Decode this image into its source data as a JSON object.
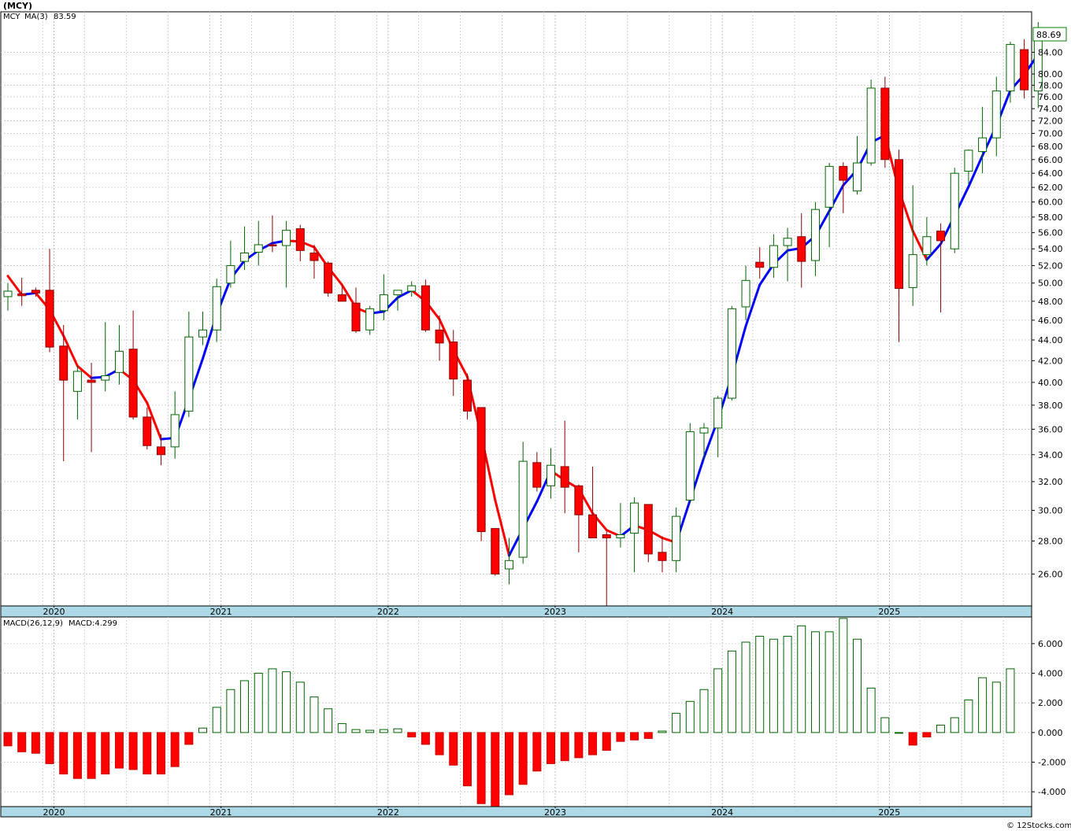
{
  "header": {
    "symbol": "(MCY)"
  },
  "legends": {
    "price": [
      {
        "text": "MCY",
        "color": "#008000"
      },
      {
        "text": "MA(3)",
        "color": "#0000ff"
      },
      {
        "text": "83.59",
        "color": "#0000ff"
      }
    ],
    "macd": [
      {
        "text": "MACD(26,12,9)",
        "color": "#000000"
      },
      {
        "text": "MACD:4.299",
        "color": "#0000ff"
      }
    ]
  },
  "last_price": "88.69",
  "years": [
    "2020",
    "2021",
    "2022",
    "2023",
    "2024",
    "2025"
  ],
  "footer": "© 12Stocks.com",
  "colors": {
    "up_fill": "#ffffff",
    "up_edge": "#006400",
    "down_fill": "#ff0000",
    "down_edge": "#8b0000",
    "ma_up": "#0000ff",
    "ma_down": "#ff0000",
    "axis_band": "#add8e6",
    "grid": "#c8c8c8"
  },
  "chart_data": [
    {
      "type": "candlestick",
      "scale": "log",
      "ylim": [
        24.2,
        92
      ],
      "x_unit": "month index starting Nov 2019",
      "y_ticks": [
        26,
        28,
        30,
        32,
        34,
        36,
        38,
        40,
        42,
        44,
        46,
        48,
        50,
        52,
        54,
        56,
        58,
        60,
        62,
        64,
        66,
        68,
        70,
        72,
        74,
        76,
        78,
        80,
        84
      ],
      "y_tick_labels": [
        "26.00",
        "28.00",
        "30.00",
        "32.00",
        "34.00",
        "36.00",
        "38.00",
        "40.00",
        "42.00",
        "44.00",
        "46.00",
        "48.00",
        "50.00",
        "52.00",
        "54.00",
        "56.00",
        "58.00",
        "60.00",
        "62.00",
        "64.00",
        "66.00",
        "68.00",
        "70.00",
        "72.00",
        "74.00",
        "76.00",
        "78.00",
        "80.00",
        "84.00"
      ],
      "candles": [
        [
          48.5,
          50,
          47,
          49.1
        ],
        [
          48.8,
          50.6,
          47.5,
          48.6
        ],
        [
          49.2,
          49.5,
          48.5,
          48.9
        ],
        [
          49.2,
          54,
          42.8,
          43.3
        ],
        [
          43.4,
          45.5,
          33.5,
          40.2
        ],
        [
          39.2,
          41.5,
          36.8,
          41
        ],
        [
          40.2,
          41.8,
          34.2,
          40
        ],
        [
          40.2,
          45.8,
          39.2,
          40.6
        ],
        [
          40.9,
          45.5,
          39.8,
          42.9
        ],
        [
          43.1,
          47,
          36.8,
          37
        ],
        [
          37,
          37.8,
          34.4,
          34.7
        ],
        [
          34.6,
          35.6,
          33.2,
          34
        ],
        [
          34.6,
          39.2,
          33.7,
          37.2
        ],
        [
          37.5,
          46.9,
          37,
          44.3
        ],
        [
          44.3,
          46.9,
          43.5,
          45
        ],
        [
          45,
          50.5,
          43.8,
          49.6
        ],
        [
          50,
          55,
          49.5,
          52
        ],
        [
          52.5,
          56.8,
          51.5,
          53.5
        ],
        [
          53.6,
          57.5,
          52,
          54.5
        ],
        [
          54.5,
          58.2,
          53.6,
          54.4
        ],
        [
          54.4,
          57.5,
          49.5,
          56.3
        ],
        [
          56.5,
          57,
          52.5,
          53.8
        ],
        [
          53.5,
          54.5,
          50.5,
          52.6
        ],
        [
          52.3,
          52.5,
          48.5,
          48.9
        ],
        [
          48.7,
          49.8,
          48,
          48
        ],
        [
          47.8,
          49.5,
          44.7,
          44.9
        ],
        [
          45,
          47.5,
          44.5,
          47.2
        ],
        [
          47,
          51,
          46,
          48.7
        ],
        [
          48.7,
          49,
          47,
          49.2
        ],
        [
          49.1,
          50.2,
          48.5,
          49.7
        ],
        [
          49.7,
          50.4,
          44.8,
          45
        ],
        [
          45,
          46.5,
          42,
          43.7
        ],
        [
          43.8,
          45,
          38.8,
          40.3
        ],
        [
          40.2,
          40.8,
          36.8,
          37.5
        ],
        [
          37.8,
          37.8,
          28,
          28.6
        ],
        [
          28.8,
          28.8,
          25.9,
          26
        ],
        [
          26.3,
          28.2,
          25.4,
          26.8
        ],
        [
          27,
          35,
          26.6,
          33.5
        ],
        [
          33.4,
          34.2,
          31.3,
          31.6
        ],
        [
          31.7,
          34.5,
          30.8,
          33.2
        ],
        [
          33.1,
          36.7,
          29.8,
          31.6
        ],
        [
          31.7,
          31.8,
          27.3,
          29.7
        ],
        [
          29.7,
          33.1,
          28.2,
          28.2
        ],
        [
          28.4,
          28.6,
          24.2,
          28.2
        ],
        [
          28.2,
          30.5,
          27.6,
          28.4
        ],
        [
          28.5,
          30.9,
          26.1,
          30.5
        ],
        [
          30.4,
          30.4,
          26.7,
          27.2
        ],
        [
          27.3,
          28.3,
          26.1,
          26.8
        ],
        [
          26.8,
          30.2,
          26.1,
          29.6
        ],
        [
          30.7,
          36.5,
          30.5,
          35.8
        ],
        [
          35.7,
          36.5,
          33.6,
          36.1
        ],
        [
          36.1,
          38.8,
          33.8,
          38.6
        ],
        [
          38.6,
          47.5,
          38.4,
          47.2
        ],
        [
          47.4,
          52,
          46,
          50.3
        ],
        [
          52.4,
          54.2,
          50.5,
          51.8
        ],
        [
          51.8,
          55.8,
          50.6,
          54.4
        ],
        [
          54.4,
          56.6,
          50.2,
          55.3
        ],
        [
          55.5,
          58.5,
          49.5,
          52.5
        ],
        [
          52.6,
          60,
          50.8,
          59
        ],
        [
          59.3,
          65.5,
          54.2,
          65
        ],
        [
          65,
          65.6,
          58.5,
          63
        ],
        [
          61.5,
          69.6,
          61,
          65.5
        ],
        [
          65.5,
          79,
          65.1,
          77.5
        ],
        [
          77.5,
          79.5,
          64.8,
          66
        ],
        [
          66,
          67.5,
          43.8,
          49.4
        ],
        [
          49.5,
          62.3,
          47.5,
          53.3
        ],
        [
          53.3,
          58,
          52,
          55.5
        ],
        [
          56.2,
          57.2,
          46.8,
          55
        ],
        [
          54,
          64.8,
          53.5,
          64
        ],
        [
          64.3,
          67.5,
          62.5,
          67.4
        ],
        [
          67.2,
          74.3,
          64,
          69.3
        ],
        [
          69.3,
          79.5,
          66.5,
          77
        ],
        [
          77,
          86,
          75,
          85.5
        ],
        [
          84.5,
          86.5,
          75.7,
          77.2
        ],
        [
          77,
          89.9,
          74.1,
          88.7
        ]
      ]
    },
    {
      "type": "line",
      "name": "MA(3)",
      "x_start_index": 0,
      "values": [
        50.8,
        48.7,
        48.9,
        47.1,
        44.4,
        41.5,
        40.4,
        40.5,
        41.2,
        40.2,
        38.2,
        35.2,
        35.3,
        38.5,
        42.2,
        46.6,
        50.5,
        52.6,
        53.8,
        54.7,
        55.0,
        54.9,
        54.2,
        51.8,
        49.8,
        47.3,
        46.7,
        46.9,
        48.4,
        49.2,
        48.0,
        46.1,
        43.0,
        40.5,
        35.5,
        30.7,
        27.1,
        28.8,
        30.6,
        32.8,
        32.1,
        31.5,
        29.8,
        28.7,
        28.3,
        29.0,
        28.7,
        28.2,
        27.9,
        30.7,
        33.8,
        36.8,
        40.6,
        45.4,
        49.8,
        52.2,
        53.8,
        54.1,
        55.6,
        58.8,
        62.3,
        64.5,
        68.6,
        69.7,
        61.6,
        56.2,
        52.7,
        54.6,
        58.2,
        62.1,
        66.6,
        71.2,
        77.1,
        79.9,
        83.6
      ]
    },
    {
      "type": "bar",
      "name": "MACD(26,12,9)",
      "ylim": [
        -5.0,
        7.8
      ],
      "y_ticks": [
        -4,
        -2,
        0,
        2,
        4,
        6
      ],
      "y_tick_labels": [
        "-4.000",
        "-2.000",
        "0.000",
        "2.000",
        "4.000",
        "6.000"
      ],
      "values": [
        -0.9,
        -1.3,
        -1.4,
        -2.1,
        -2.8,
        -3.1,
        -3.1,
        -2.8,
        -2.4,
        -2.5,
        -2.8,
        -2.8,
        -2.3,
        -0.8,
        0.3,
        1.7,
        2.9,
        3.5,
        4.0,
        4.3,
        4.1,
        3.4,
        2.4,
        1.6,
        0.6,
        0.2,
        0.15,
        0.2,
        0.25,
        -0.3,
        -0.8,
        -1.5,
        -2.2,
        -3.6,
        -4.8,
        -5.2,
        -4.2,
        -3.5,
        -2.6,
        -2.1,
        -1.9,
        -1.7,
        -1.5,
        -1.2,
        -0.6,
        -0.5,
        -0.4,
        0.1,
        1.3,
        2.1,
        2.9,
        4.3,
        5.5,
        6.1,
        6.5,
        6.3,
        6.5,
        7.2,
        6.8,
        6.8,
        7.7,
        6.3,
        3.0,
        1.0,
        0.0,
        -0.85,
        -0.3,
        0.5,
        1.0,
        2.2,
        3.7,
        3.4,
        4.3
      ]
    }
  ]
}
